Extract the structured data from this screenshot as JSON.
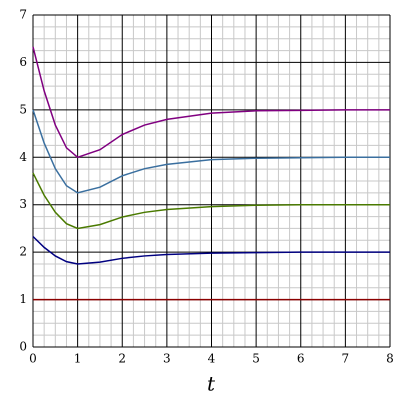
{
  "chart_data": {
    "type": "line",
    "xlabel": "t",
    "x": [
      0,
      0.25,
      0.5,
      0.75,
      1,
      1.5,
      2,
      2.5,
      3,
      4,
      5,
      6,
      7,
      8
    ],
    "series": [
      {
        "color": "#800080",
        "values": [
          6.33,
          5.4,
          4.68,
          4.2,
          4.0,
          4.16,
          4.48,
          4.68,
          4.8,
          4.93,
          4.98,
          4.99,
          5,
          5
        ]
      },
      {
        "color": "#3a6f9f",
        "values": [
          5.0,
          4.3,
          3.76,
          3.4,
          3.25,
          3.37,
          3.61,
          3.76,
          3.85,
          3.95,
          3.98,
          3.99,
          4,
          4
        ]
      },
      {
        "color": "#4a7a00",
        "values": [
          3.67,
          3.2,
          2.84,
          2.6,
          2.5,
          2.58,
          2.74,
          2.84,
          2.9,
          2.96,
          2.99,
          3,
          3,
          3
        ]
      },
      {
        "color": "#000080",
        "values": [
          2.33,
          2.1,
          1.92,
          1.8,
          1.75,
          1.79,
          1.87,
          1.92,
          1.95,
          1.98,
          1.99,
          2,
          2,
          2
        ]
      },
      {
        "color": "#8b0000",
        "values": [
          1,
          1,
          1,
          1,
          1,
          1,
          1,
          1,
          1,
          1,
          1,
          1,
          1,
          1
        ]
      }
    ],
    "xlim": [
      0,
      8
    ],
    "xticks": [
      0,
      1,
      2,
      3,
      4,
      5,
      6,
      7,
      8
    ],
    "ylim": [
      0,
      7
    ],
    "yticks": [
      0,
      1,
      2,
      3,
      4,
      5,
      6,
      7
    ],
    "grid": true,
    "minor_divisions": 4
  }
}
